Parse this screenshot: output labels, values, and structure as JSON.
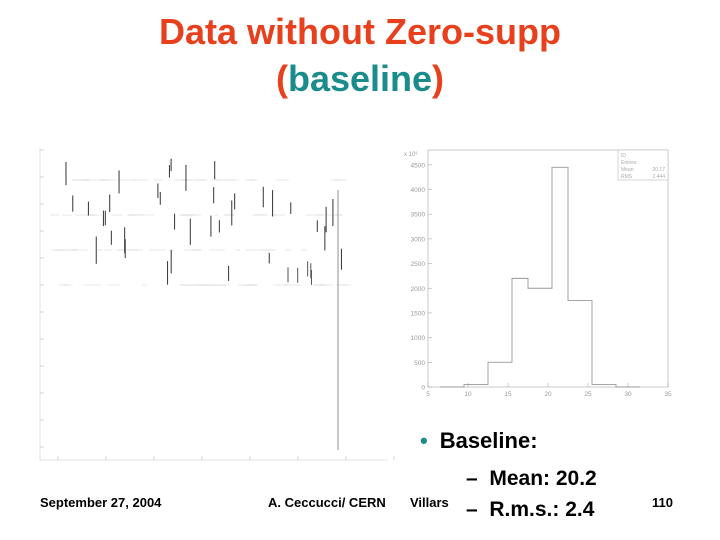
{
  "slide": {
    "title_line1": "Data without Zero-supp",
    "title_paren_open": "(",
    "title_word": "baseline",
    "title_paren_close": ")"
  },
  "bullets": {
    "main": "Baseline:",
    "dash1": "–",
    "mean": "Mean:  20.2",
    "dash2": "–",
    "rms": "R.m.s.:  2.4"
  },
  "footer": {
    "date": "September 27, 2004",
    "author": "A. Ceccucci/ CERN",
    "venue": "Villars",
    "page": "110"
  },
  "colors": {
    "title": "#e8401c",
    "accent": "#1b8c8c"
  },
  "chart_data": [
    {
      "type": "scatter",
      "title": "",
      "xlabel": "",
      "ylabel": "",
      "note": "left panel: faint baseline-per-channel scan plot, tick labels illegible"
    },
    {
      "type": "bar",
      "title": "",
      "xlabel": "",
      "ylabel": "",
      "x_ticks": [
        "5",
        "10",
        "15",
        "20",
        "25",
        "30",
        "35"
      ],
      "y_ticks": [
        "0",
        "500",
        "1000",
        "1500",
        "2000",
        "2500",
        "3000",
        "3500",
        "4000",
        "4500"
      ],
      "y_multiplier": "x 10³",
      "bin_edges": [
        6.5,
        9.5,
        12.5,
        15.5,
        17.5,
        20.5,
        22.5,
        25.5,
        28.5,
        31.5
      ],
      "values": [
        0,
        50,
        500,
        2200,
        2000,
        4450,
        1750,
        50,
        0
      ],
      "xlim": [
        5,
        35
      ],
      "ylim": [
        0,
        4800
      ],
      "stats": [
        {
          "label": "ID",
          "value": ""
        },
        {
          "label": "Entries",
          "value": ""
        },
        {
          "label": "Mean",
          "value": "20.17"
        },
        {
          "label": "RMS",
          "value": "2.444"
        }
      ]
    }
  ]
}
